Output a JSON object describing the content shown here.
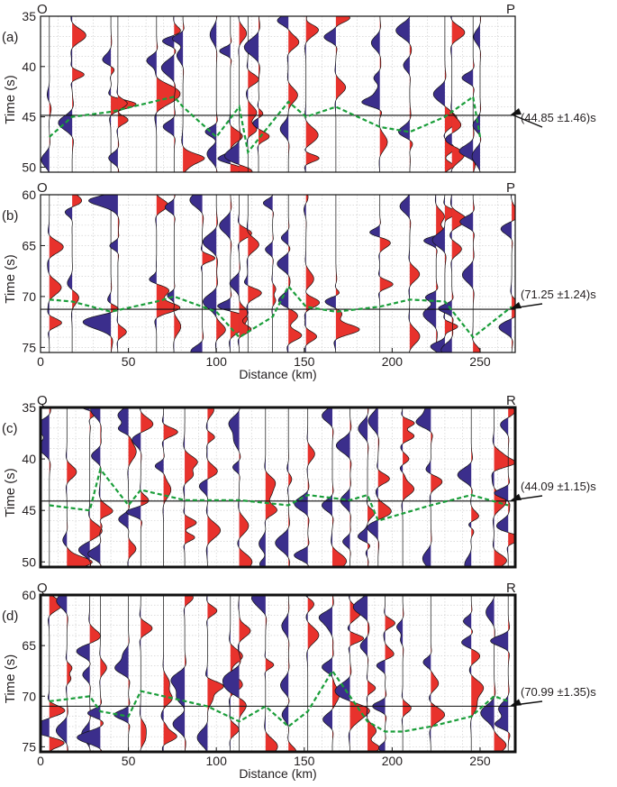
{
  "chart_data": [
    {
      "type": "seismic-wiggle",
      "panel_label": "(a)",
      "start_station": "O",
      "end_station": "P",
      "ylabel": "Time (s)",
      "xlabel": "",
      "xlim": [
        0,
        270
      ],
      "ylim": [
        35,
        50.5
      ],
      "yticks": [
        "35",
        "40",
        "45",
        "50"
      ],
      "xticks": [],
      "trace_x": [
        5,
        18,
        40,
        44,
        66,
        76,
        81,
        100,
        108,
        113,
        118,
        124,
        141,
        151,
        168,
        193,
        210,
        230,
        234,
        246,
        250
      ],
      "picks": [
        [
          5,
          47.0
        ],
        [
          18,
          45.0
        ],
        [
          40,
          44.5
        ],
        [
          76,
          43.0
        ],
        [
          81,
          44.0
        ],
        [
          100,
          47.0
        ],
        [
          113,
          44.0
        ],
        [
          118,
          48.5
        ],
        [
          141,
          43.5
        ],
        [
          151,
          45.0
        ],
        [
          168,
          44.0
        ],
        [
          193,
          46.0
        ],
        [
          210,
          46.5
        ],
        [
          230,
          45.0
        ],
        [
          246,
          43.0
        ],
        [
          250,
          47.0
        ]
      ],
      "reference_line": 44.85,
      "annotation": "(44.85 ±1.46)s",
      "legend_colors": {
        "positive": "#e8322c",
        "negative": "#3b2e8c",
        "picks": "#1a9e3a"
      }
    },
    {
      "type": "seismic-wiggle",
      "panel_label": "(b)",
      "start_station": "O",
      "end_station": "P",
      "ylabel": "Time (s)",
      "xlabel": "Distance (km)",
      "xlim": [
        0,
        270
      ],
      "ylim": [
        60,
        75.5
      ],
      "yticks": [
        "60",
        "65",
        "70",
        "75"
      ],
      "xticks": [
        "0",
        "50",
        "100",
        "150",
        "200",
        "250"
      ],
      "trace_x": [
        5,
        18,
        40,
        44,
        66,
        76,
        92,
        100,
        108,
        113,
        118,
        132,
        141,
        151,
        168,
        193,
        210,
        225,
        230,
        234,
        246,
        268
      ],
      "picks": [
        [
          5,
          70.3
        ],
        [
          18,
          70.5
        ],
        [
          40,
          71.5
        ],
        [
          66,
          70.5
        ],
        [
          76,
          70.0
        ],
        [
          100,
          71.5
        ],
        [
          113,
          74.0
        ],
        [
          132,
          72.0
        ],
        [
          141,
          69.0
        ],
        [
          151,
          71.0
        ],
        [
          168,
          71.5
        ],
        [
          193,
          71.0
        ],
        [
          210,
          70.3
        ],
        [
          230,
          70.5
        ],
        [
          246,
          74.0
        ],
        [
          268,
          71.0
        ]
      ],
      "reference_line": 71.25,
      "annotation": "(71.25 ±1.24)s",
      "legend_colors": {
        "positive": "#e8322c",
        "negative": "#3b2e8c",
        "picks": "#1a9e3a"
      }
    },
    {
      "type": "seismic-wiggle",
      "panel_label": "(c)",
      "start_station": "Q",
      "end_station": "R",
      "ylabel": "Time (s)",
      "xlabel": "",
      "xlim": [
        0,
        270
      ],
      "ylim": [
        35,
        50.5
      ],
      "yticks": [
        "35",
        "40",
        "45",
        "50"
      ],
      "xticks": [],
      "trace_x": [
        5,
        15,
        28,
        34,
        50,
        57,
        70,
        82,
        95,
        113,
        128,
        141,
        152,
        166,
        176,
        186,
        192,
        206,
        222,
        245,
        258,
        266
      ],
      "picks": [
        [
          5,
          44.5
        ],
        [
          28,
          45.0
        ],
        [
          34,
          41.0
        ],
        [
          50,
          44.5
        ],
        [
          57,
          43.0
        ],
        [
          82,
          44.0
        ],
        [
          113,
          44.0
        ],
        [
          141,
          44.5
        ],
        [
          152,
          43.5
        ],
        [
          176,
          44.0
        ],
        [
          186,
          43.5
        ],
        [
          192,
          46.0
        ],
        [
          222,
          44.5
        ],
        [
          245,
          43.5
        ],
        [
          266,
          44.5
        ]
      ],
      "reference_line": 44.09,
      "annotation": "(44.09 ±1.15)s",
      "legend_colors": {
        "positive": "#e8322c",
        "negative": "#3b2e8c",
        "picks": "#1a9e3a"
      }
    },
    {
      "type": "seismic-wiggle",
      "panel_label": "(d)",
      "start_station": "Q",
      "end_station": "R",
      "ylabel": "Time (s)",
      "xlabel": "Distance (km)",
      "xlim": [
        0,
        270
      ],
      "ylim": [
        60,
        75.5
      ],
      "yticks": [
        "60",
        "65",
        "70",
        "75"
      ],
      "xticks": [
        "0",
        "50",
        "100",
        "150",
        "200",
        "250"
      ],
      "trace_x": [
        5,
        15,
        28,
        34,
        50,
        57,
        70,
        82,
        95,
        108,
        113,
        128,
        141,
        152,
        166,
        176,
        186,
        196,
        206,
        222,
        245,
        258,
        266
      ],
      "picks": [
        [
          5,
          70.5
        ],
        [
          15,
          70.3
        ],
        [
          28,
          70.0
        ],
        [
          34,
          71.5
        ],
        [
          50,
          72.0
        ],
        [
          57,
          69.5
        ],
        [
          70,
          70.0
        ],
        [
          95,
          71.0
        ],
        [
          113,
          72.5
        ],
        [
          128,
          71.0
        ],
        [
          141,
          73.0
        ],
        [
          152,
          71.5
        ],
        [
          166,
          67.5
        ],
        [
          176,
          70.0
        ],
        [
          186,
          72.5
        ],
        [
          196,
          73.5
        ],
        [
          206,
          73.5
        ],
        [
          222,
          73.0
        ],
        [
          245,
          72.0
        ],
        [
          258,
          70.0
        ],
        [
          266,
          70.5
        ]
      ],
      "reference_line": 70.99,
      "annotation": "(70.99 ±1.35)s",
      "legend_colors": {
        "positive": "#e8322c",
        "negative": "#3b2e8c",
        "picks": "#1a9e3a"
      }
    }
  ]
}
